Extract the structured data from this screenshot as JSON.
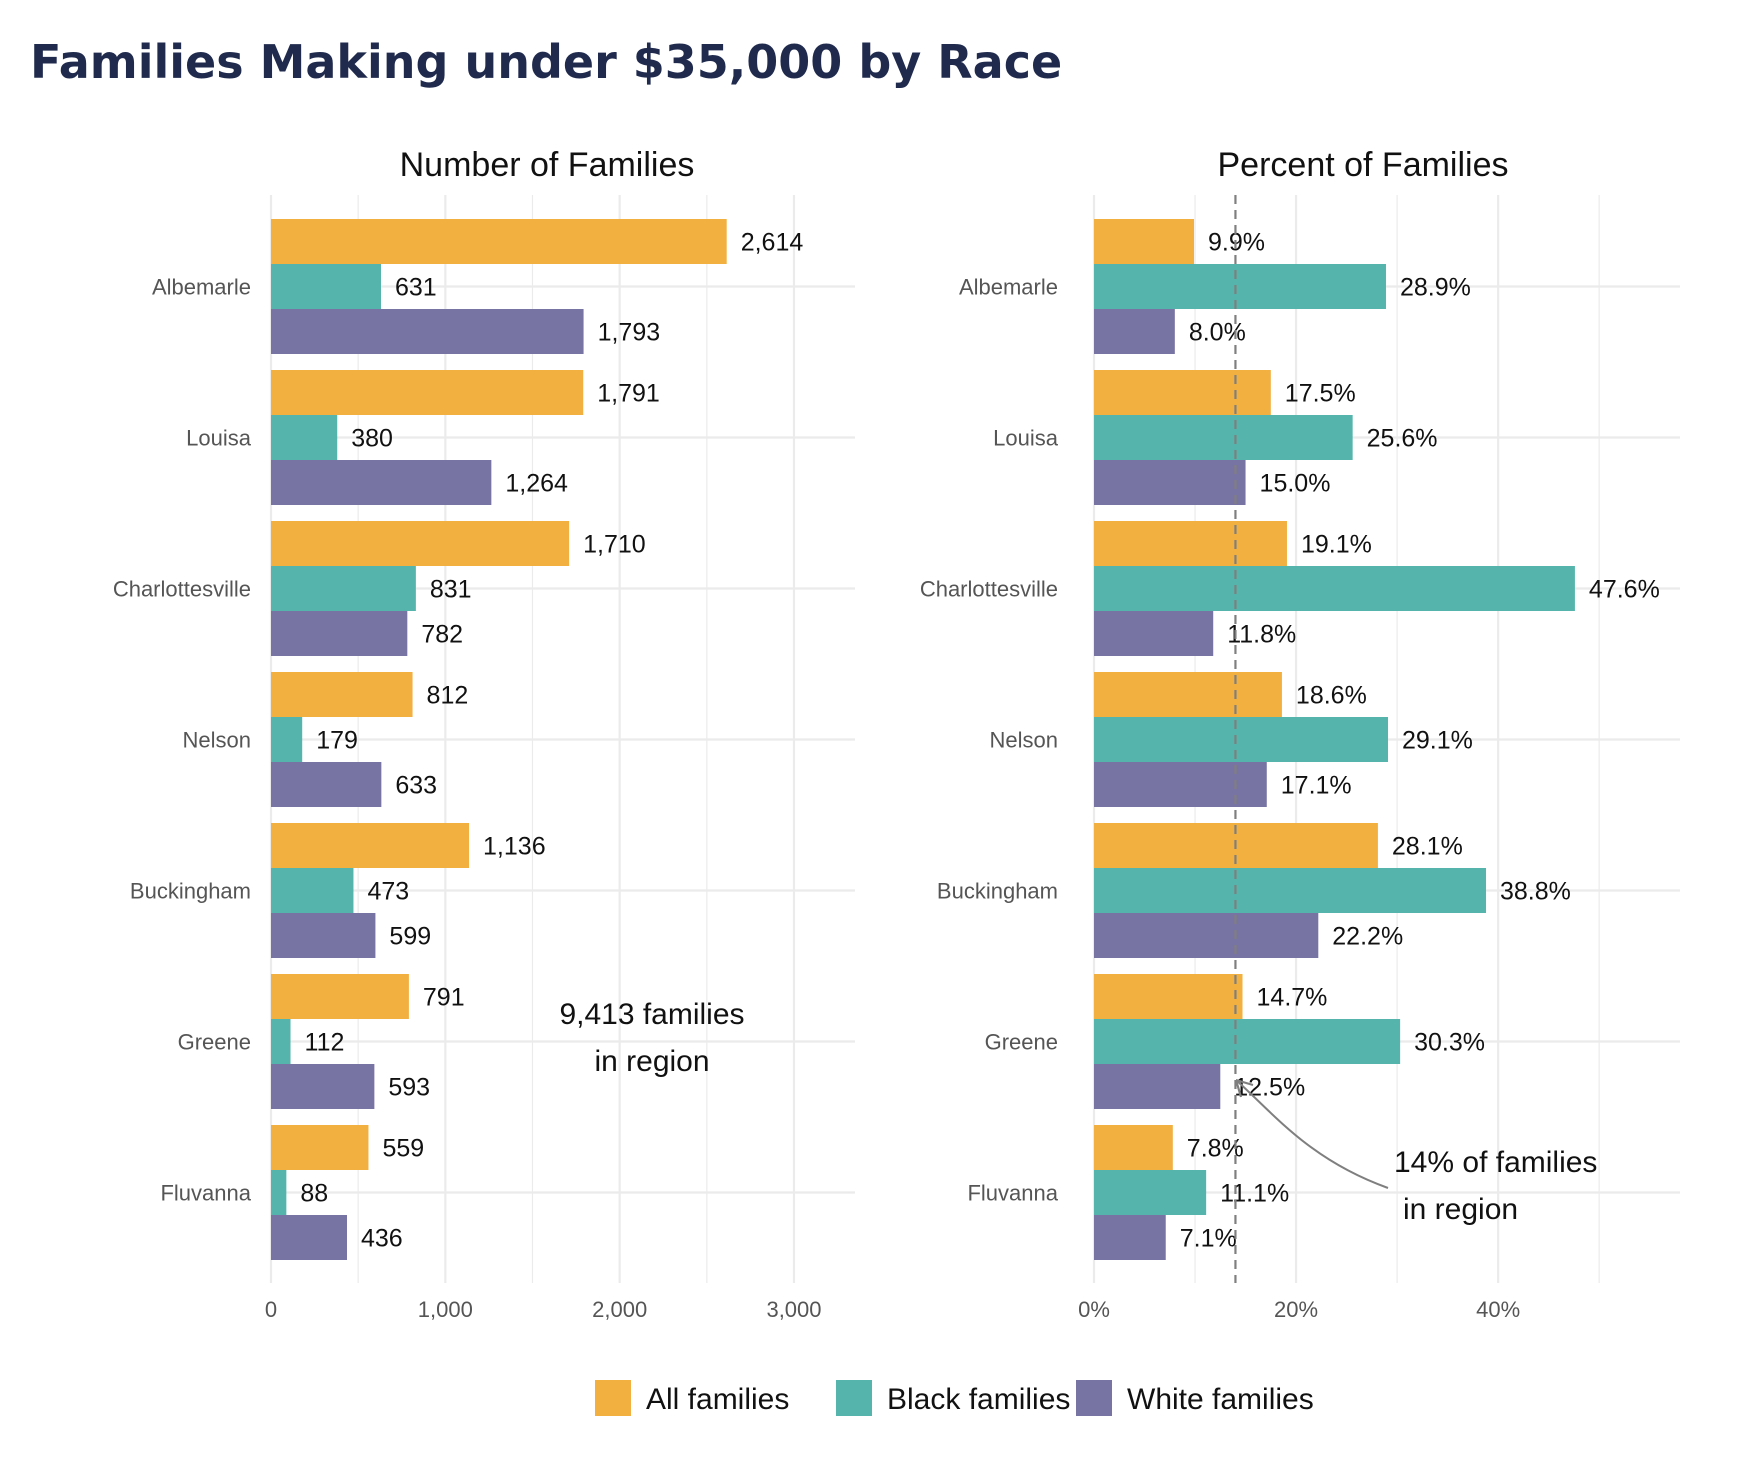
{
  "title": "Families Making under $35,000 by Race",
  "colors": {
    "all": "#F2B040",
    "black": "#55B5AD",
    "white": "#7773A3",
    "grid": "#EBEBEB",
    "title": "#1F2A4D",
    "annotation_line": "#7F7F7F"
  },
  "legend": {
    "position": "bottom",
    "items": [
      "All families",
      "Black families",
      "White families"
    ]
  },
  "chart_data": [
    {
      "type": "bar",
      "orientation": "horizontal",
      "title": "Number of Families",
      "xlabel": "",
      "ylabel": "",
      "xlim": [
        0,
        3350
      ],
      "xticks": [
        0,
        1000,
        2000,
        3000
      ],
      "xtick_labels": [
        "0",
        "1,000",
        "2,000",
        "3,000"
      ],
      "grid": true,
      "categories": [
        "Albemarle",
        "Louisa",
        "Charlottesville",
        "Nelson",
        "Buckingham",
        "Greene",
        "Fluvanna"
      ],
      "series": [
        {
          "name": "All families",
          "values": [
            2614,
            1791,
            1710,
            812,
            1136,
            791,
            559
          ],
          "labels": [
            "2,614",
            "1,791",
            "1,710",
            "812",
            "1,136",
            "791",
            "559"
          ]
        },
        {
          "name": "Black families",
          "values": [
            631,
            380,
            831,
            179,
            473,
            112,
            88
          ],
          "labels": [
            "631",
            "380",
            "831",
            "179",
            "473",
            "112",
            "88"
          ]
        },
        {
          "name": "White families",
          "values": [
            1793,
            1264,
            782,
            633,
            599,
            593,
            436
          ],
          "labels": [
            "1,793",
            "1,264",
            "782",
            "633",
            "599",
            "593",
            "436"
          ]
        }
      ],
      "annotation": {
        "lines": [
          "9,413 families",
          "in region"
        ]
      }
    },
    {
      "type": "bar",
      "orientation": "horizontal",
      "title": "Percent of Families",
      "xlabel": "",
      "ylabel": "",
      "xlim": [
        0,
        58
      ],
      "xticks": [
        0,
        20,
        40
      ],
      "xtick_labels": [
        "0%",
        "20%",
        "40%"
      ],
      "grid": true,
      "categories": [
        "Albemarle",
        "Louisa",
        "Charlottesville",
        "Nelson",
        "Buckingham",
        "Greene",
        "Fluvanna"
      ],
      "series": [
        {
          "name": "All families",
          "values": [
            9.9,
            17.5,
            19.1,
            18.6,
            28.1,
            14.7,
            7.8
          ],
          "labels": [
            "9.9%",
            "17.5%",
            "19.1%",
            "18.6%",
            "28.1%",
            "14.7%",
            "7.8%"
          ]
        },
        {
          "name": "Black families",
          "values": [
            28.9,
            25.6,
            47.6,
            29.1,
            38.8,
            30.3,
            11.1
          ],
          "labels": [
            "28.9%",
            "25.6%",
            "47.6%",
            "29.1%",
            "38.8%",
            "30.3%",
            "11.1%"
          ]
        },
        {
          "name": "White families",
          "values": [
            8.0,
            15.0,
            11.8,
            17.1,
            22.2,
            12.5,
            7.1
          ],
          "labels": [
            "8.0%",
            "15.0%",
            "11.8%",
            "17.1%",
            "22.2%",
            "12.5%",
            "7.1%"
          ]
        }
      ],
      "reference_line": {
        "value": 14,
        "style": "dashed"
      },
      "annotation": {
        "lines": [
          "14% of families",
          "in region"
        ]
      }
    }
  ]
}
